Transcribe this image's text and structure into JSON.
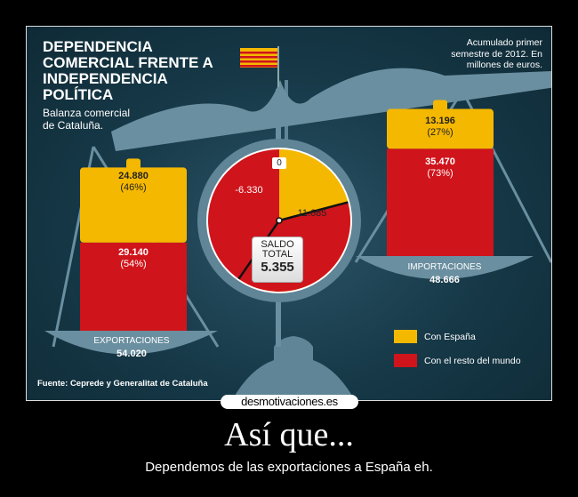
{
  "infographic": {
    "title": "DEPENDENCIA COMERCIAL FRENTE A INDEPENDENCIA POLÍTICA",
    "subtitle": "Balanza comercial de Cataluña.",
    "note": "Acumulado primer semestre de 2012. En millones de euros.",
    "source": "Fuente: Ceprede y Generalitat de Cataluña"
  },
  "chart_data": {
    "type": "bar",
    "title": "DEPENDENCIA COMERCIAL FRENTE A INDEPENDENCIA POLÍTICA",
    "categories": [
      "EXPORTACIONES",
      "IMPORTACIONES"
    ],
    "series": [
      {
        "name": "Con España",
        "color": "#f5b800",
        "values": [
          24880,
          13196
        ],
        "labels": [
          "24.880",
          "13.196"
        ],
        "pct": [
          "(46%)",
          "(27%)"
        ]
      },
      {
        "name": "Con el resto del mundo",
        "color": "#d0141b",
        "values": [
          29140,
          35470
        ],
        "labels": [
          "29.140",
          "35.470"
        ],
        "pct": [
          "(54%)",
          "(73%)"
        ]
      }
    ],
    "totals": {
      "EXPORTACIONES": "54.020",
      "IMPORTACIONES": "48.666"
    },
    "gauge": {
      "zero_label": "0",
      "negative": -6330,
      "negative_label": "-6.330",
      "positive": 11685,
      "positive_label": "11.685",
      "saldo_label": "SALDO TOTAL",
      "saldo": 5355,
      "saldo_text": "5.355"
    },
    "legend": [
      "Con España",
      "Con el resto del mundo"
    ]
  },
  "poster": {
    "logo": "desmotivaciones.es",
    "caption": "Así que...",
    "subcaption": "Dependemos de las exportaciones a España eh."
  }
}
